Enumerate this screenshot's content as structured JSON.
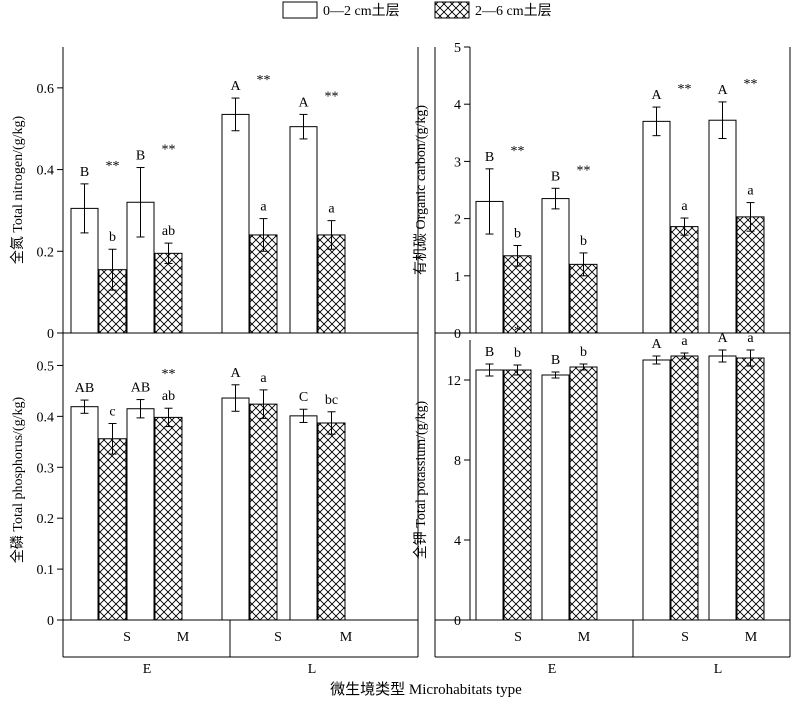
{
  "legend": {
    "items": [
      {
        "label": "0—2 cm土层",
        "pattern": "white"
      },
      {
        "label": "2—6 cm土层",
        "pattern": "crosshatch"
      }
    ]
  },
  "xaxis_title": "微生境类型 Microhabitats type",
  "groups": {
    "categories": [
      "S",
      "M",
      "S",
      "M"
    ],
    "outer": [
      "E",
      "L"
    ]
  },
  "chart_data": [
    {
      "type": "bar",
      "ylabel": "全氮 Total nitrogen/(g/kg)",
      "ylim": [
        0,
        0.7
      ],
      "yticks": [
        "0",
        "0.2",
        "0.4",
        "0.6"
      ],
      "categories": [
        "E-S",
        "E-M",
        "L-S",
        "L-M"
      ],
      "series": [
        {
          "name": "0—2 cm土层",
          "values": [
            0.305,
            0.32,
            0.535,
            0.505
          ],
          "errors": [
            0.06,
            0.085,
            0.04,
            0.03
          ],
          "letters": [
            "B",
            "B",
            "A",
            "A"
          ]
        },
        {
          "name": "2—6 cm土层",
          "values": [
            0.155,
            0.195,
            0.24,
            0.24
          ],
          "errors": [
            0.05,
            0.025,
            0.04,
            0.035
          ],
          "letters": [
            "b",
            "ab",
            "a",
            "a"
          ]
        }
      ],
      "significance": [
        "**",
        "**",
        "**",
        "**"
      ]
    },
    {
      "type": "bar",
      "ylabel": "有机碳 Organic carbon/(g/kg)",
      "ylim": [
        0,
        5
      ],
      "yticks": [
        "0",
        "1",
        "2",
        "3",
        "4",
        "5"
      ],
      "categories": [
        "E-S",
        "E-M",
        "L-S",
        "L-M"
      ],
      "series": [
        {
          "name": "0—2 cm土层",
          "values": [
            2.3,
            2.35,
            3.7,
            3.72
          ],
          "errors": [
            0.57,
            0.18,
            0.25,
            0.32
          ],
          "letters": [
            "B",
            "B",
            "A",
            "A"
          ]
        },
        {
          "name": "2—6 cm土层",
          "values": [
            1.35,
            1.2,
            1.86,
            2.03
          ],
          "errors": [
            0.18,
            0.2,
            0.15,
            0.25
          ],
          "letters": [
            "b",
            "b",
            "a",
            "a"
          ]
        }
      ],
      "significance": [
        "**",
        "**",
        "**",
        "**"
      ]
    },
    {
      "type": "bar",
      "ylabel": "全磷 Total phosphorus/(g/kg)",
      "ylim": [
        0,
        0.55
      ],
      "yticks": [
        "0",
        "0.1",
        "0.2",
        "0.3",
        "0.4",
        "0.5"
      ],
      "categories": [
        "E-S",
        "E-M",
        "L-S",
        "L-M"
      ],
      "series": [
        {
          "name": "0—2 cm土层",
          "values": [
            0.419,
            0.415,
            0.436,
            0.401
          ],
          "errors": [
            0.013,
            0.018,
            0.026,
            0.013
          ],
          "letters": [
            "AB",
            "AB",
            "A",
            "C"
          ]
        },
        {
          "name": "2—6 cm土层",
          "values": [
            0.356,
            0.398,
            0.424,
            0.387
          ],
          "errors": [
            0.03,
            0.018,
            0.028,
            0.022
          ],
          "letters": [
            "c",
            "ab",
            "a",
            "bc"
          ]
        }
      ],
      "significance": [
        "",
        "**",
        "",
        ""
      ]
    },
    {
      "type": "bar",
      "ylabel": "全钾 Total potassium/(g/kg)",
      "ylim": [
        0,
        14
      ],
      "yticks": [
        "0",
        "4",
        "8",
        "12"
      ],
      "categories": [
        "E-S",
        "E-M",
        "L-S",
        "L-M"
      ],
      "series": [
        {
          "name": "0—2 cm土层",
          "values": [
            12.5,
            12.25,
            13.0,
            13.2
          ],
          "errors": [
            0.3,
            0.15,
            0.2,
            0.3
          ],
          "letters": [
            "B",
            "B",
            "A",
            "A"
          ]
        },
        {
          "name": "2—6 cm土层",
          "values": [
            12.5,
            12.65,
            13.2,
            13.1
          ],
          "errors": [
            0.25,
            0.15,
            0.15,
            0.4
          ],
          "letters": [
            "b",
            "b",
            "a",
            "a"
          ]
        }
      ],
      "significance": [
        "*",
        "",
        "",
        ""
      ]
    }
  ]
}
